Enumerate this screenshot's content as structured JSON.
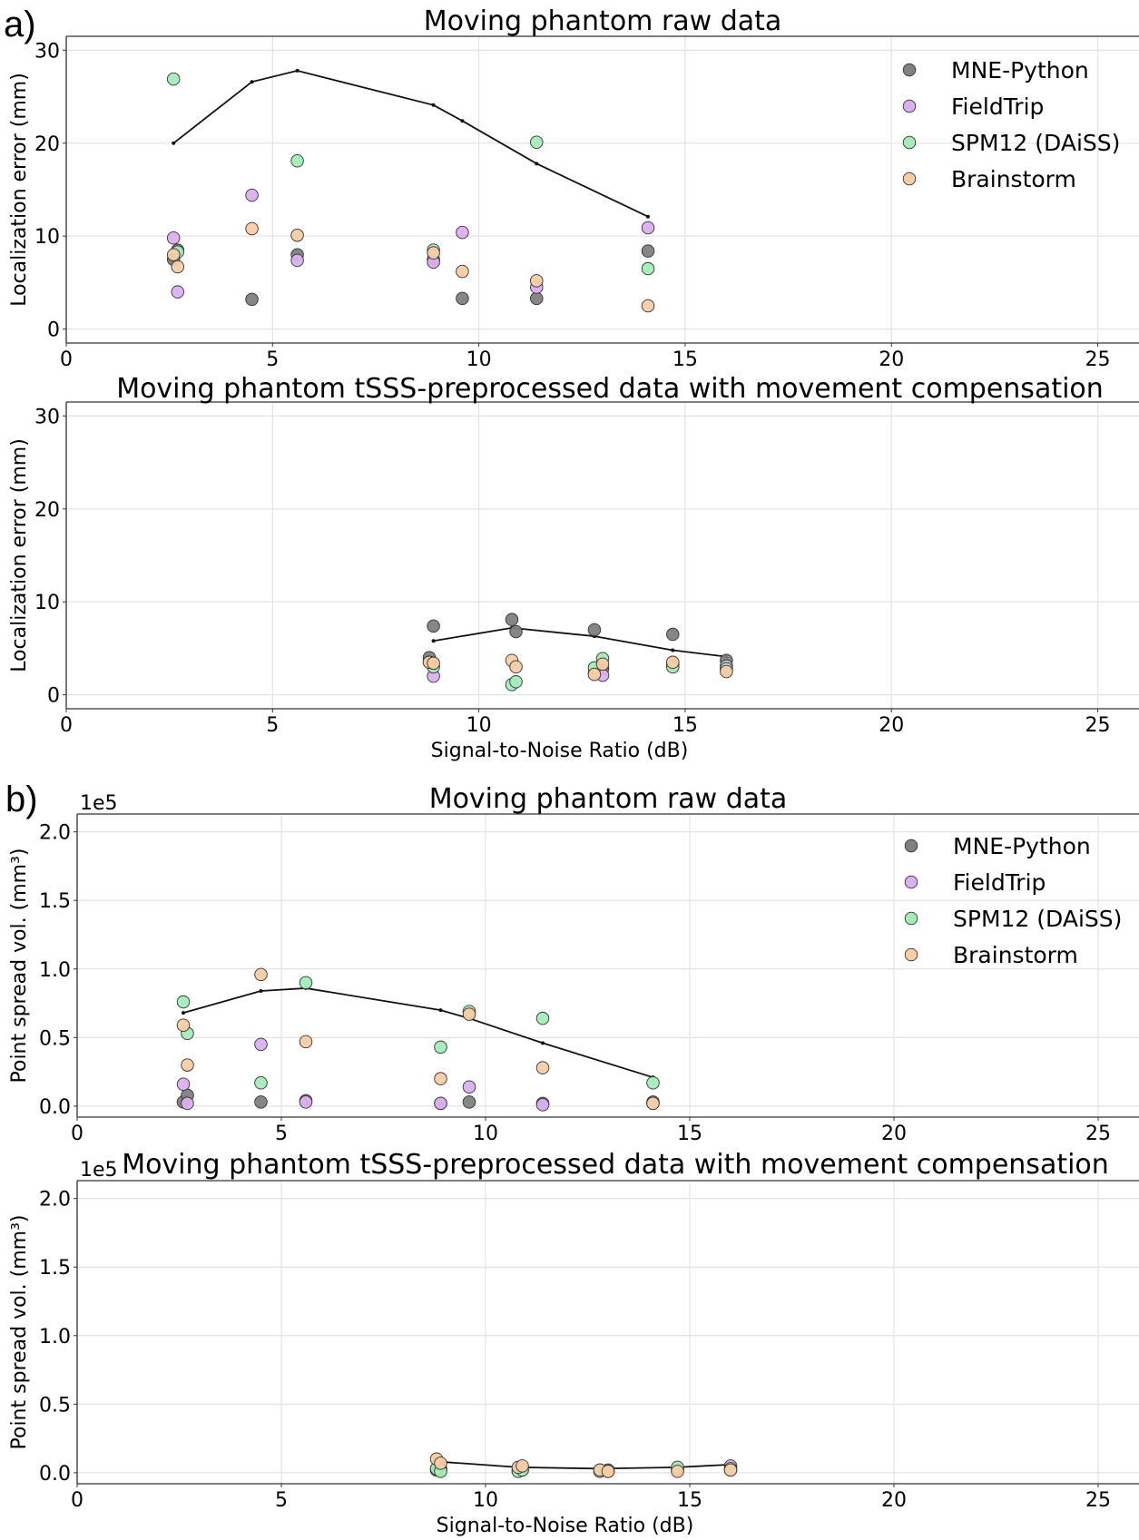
{
  "panel_labels": [
    "a)",
    "b)"
  ],
  "legend": {
    "entries": [
      {
        "name": "MNE-Python",
        "color": "#808080"
      },
      {
        "name": "FieldTrip",
        "color": "#dcaff0"
      },
      {
        "name": "SPM12 (DAiSS)",
        "color": "#a3ecb8"
      },
      {
        "name": "Brainstorm",
        "color": "#f7cda4"
      }
    ]
  },
  "chart_data": [
    {
      "type": "scatter",
      "title": "Moving phantom raw data",
      "xlabel": "",
      "ylabel": "Localization error (mm)",
      "xlim": [
        0,
        26
      ],
      "ylim": [
        -1.5,
        31.5
      ],
      "xticks": [
        "0",
        "5",
        "10",
        "15",
        "20",
        "25"
      ],
      "yticks": [
        {
          "v": 0,
          "label": "0"
        },
        {
          "v": 10,
          "label": "10"
        },
        {
          "v": 20,
          "label": "20"
        },
        {
          "v": 30,
          "label": "30"
        }
      ],
      "grid": true,
      "legend_position": "top-right",
      "show_legend": true,
      "series": [
        {
          "name": "MNE-Python",
          "color": "#808080",
          "points": [
            [
              2.6,
              7.5
            ],
            [
              2.7,
              8.5
            ],
            [
              4.5,
              3.2
            ],
            [
              5.6,
              8.0
            ],
            [
              8.9,
              7.5
            ],
            [
              9.6,
              3.3
            ],
            [
              11.4,
              3.3
            ],
            [
              14.1,
              8.4
            ]
          ]
        },
        {
          "name": "FieldTrip",
          "color": "#dcaff0",
          "points": [
            [
              2.6,
              9.8
            ],
            [
              2.7,
              4.0
            ],
            [
              4.5,
              14.4
            ],
            [
              5.6,
              7.4
            ],
            [
              8.9,
              7.2
            ],
            [
              9.6,
              10.4
            ],
            [
              11.4,
              4.5
            ],
            [
              14.1,
              10.9
            ]
          ]
        },
        {
          "name": "SPM12 (DAiSS)",
          "color": "#a3ecb8",
          "points": [
            [
              2.6,
              26.9
            ],
            [
              2.7,
              8.3
            ],
            [
              5.6,
              18.1
            ],
            [
              8.9,
              8.5
            ],
            [
              11.4,
              20.1
            ],
            [
              14.1,
              6.5
            ]
          ]
        },
        {
          "name": "Brainstorm",
          "color": "#f7cda4",
          "points": [
            [
              2.6,
              8.0
            ],
            [
              2.7,
              6.7
            ],
            [
              4.5,
              10.8
            ],
            [
              5.6,
              10.1
            ],
            [
              8.9,
              8.2
            ],
            [
              9.6,
              6.2
            ],
            [
              11.4,
              5.2
            ],
            [
              14.1,
              2.5
            ]
          ]
        }
      ],
      "line": [
        [
          2.6,
          20.0
        ],
        [
          4.5,
          26.6
        ],
        [
          5.6,
          27.8
        ],
        [
          8.9,
          24.1
        ],
        [
          9.6,
          22.4
        ],
        [
          11.4,
          17.8
        ],
        [
          14.1,
          12.1
        ]
      ]
    },
    {
      "type": "scatter",
      "title": "Moving phantom tSSS-preprocessed data with movement compensation",
      "xlabel": "Signal-to-Noise Ratio (dB)",
      "ylabel": "Localization error (mm)",
      "xlim": [
        0,
        26
      ],
      "ylim": [
        -1.5,
        31.5
      ],
      "xticks": [
        "0",
        "5",
        "10",
        "15",
        "20",
        "25"
      ],
      "yticks": [
        {
          "v": 0,
          "label": "0"
        },
        {
          "v": 10,
          "label": "10"
        },
        {
          "v": 20,
          "label": "20"
        },
        {
          "v": 30,
          "label": "30"
        }
      ],
      "grid": true,
      "show_legend": false,
      "series": [
        {
          "name": "MNE-Python",
          "color": "#808080",
          "points": [
            [
              8.8,
              4.0
            ],
            [
              8.9,
              7.4
            ],
            [
              10.8,
              8.1
            ],
            [
              10.9,
              6.8
            ],
            [
              12.8,
              7.0
            ],
            [
              13.0,
              2.8
            ],
            [
              14.7,
              6.5
            ],
            [
              16.0,
              3.7
            ]
          ]
        },
        {
          "name": "FieldTrip",
          "color": "#dcaff0",
          "points": [
            [
              8.9,
              2.0
            ],
            [
              12.8,
              2.3
            ],
            [
              13.0,
              2.1
            ],
            [
              14.7,
              3.3
            ],
            [
              16.0,
              3.1
            ]
          ]
        },
        {
          "name": "SPM12 (DAiSS)",
          "color": "#a3ecb8",
          "points": [
            [
              8.8,
              3.5
            ],
            [
              8.9,
              3.0
            ],
            [
              10.8,
              1.1
            ],
            [
              10.9,
              1.4
            ],
            [
              12.8,
              2.9
            ],
            [
              13.0,
              3.9
            ],
            [
              14.7,
              3.0
            ],
            [
              16.0,
              2.8
            ]
          ]
        },
        {
          "name": "Brainstorm",
          "color": "#f7cda4",
          "points": [
            [
              8.8,
              3.5
            ],
            [
              8.9,
              3.4
            ],
            [
              10.8,
              3.7
            ],
            [
              10.9,
              3.0
            ],
            [
              12.8,
              2.2
            ],
            [
              13.0,
              3.3
            ],
            [
              14.7,
              3.5
            ],
            [
              16.0,
              2.5
            ]
          ]
        }
      ],
      "line": [
        [
          8.9,
          5.8
        ],
        [
          10.8,
          7.2
        ],
        [
          12.8,
          6.3
        ],
        [
          14.7,
          4.8
        ],
        [
          16.0,
          4.1
        ]
      ]
    },
    {
      "type": "scatter",
      "title": "Moving phantom raw data",
      "xlabel": "",
      "ylabel": "Point spread vol. (mm³)",
      "sci_label": "1e5",
      "xlim": [
        0,
        26
      ],
      "ylim": [
        -0.08,
        2.13
      ],
      "xticks": [
        "0",
        "5",
        "10",
        "15",
        "20",
        "25"
      ],
      "yticks": [
        {
          "v": 0,
          "label": "0.0"
        },
        {
          "v": 0.5,
          "label": "0.5"
        },
        {
          "v": 1.0,
          "label": "1.0"
        },
        {
          "v": 1.5,
          "label": "1.5"
        },
        {
          "v": 2.0,
          "label": "2.0"
        }
      ],
      "grid": true,
      "legend_position": "top-right",
      "show_legend": true,
      "series": [
        {
          "name": "MNE-Python",
          "color": "#808080",
          "points": [
            [
              2.6,
              0.03
            ],
            [
              2.7,
              0.08
            ],
            [
              4.5,
              0.03
            ],
            [
              5.6,
              0.04
            ],
            [
              8.9,
              0.02
            ],
            [
              9.6,
              0.03
            ],
            [
              11.4,
              0.02
            ],
            [
              14.1,
              0.03
            ]
          ]
        },
        {
          "name": "FieldTrip",
          "color": "#dcaff0",
          "points": [
            [
              2.6,
              0.16
            ],
            [
              2.7,
              0.02
            ],
            [
              4.5,
              0.45
            ],
            [
              5.6,
              0.03
            ],
            [
              8.9,
              0.02
            ],
            [
              9.6,
              0.14
            ],
            [
              11.4,
              0.01
            ],
            [
              14.1,
              0.02
            ]
          ]
        },
        {
          "name": "SPM12 (DAiSS)",
          "color": "#a3ecb8",
          "points": [
            [
              2.6,
              0.76
            ],
            [
              2.7,
              0.53
            ],
            [
              4.5,
              0.17
            ],
            [
              5.6,
              0.9
            ],
            [
              8.9,
              0.43
            ],
            [
              9.6,
              0.69
            ],
            [
              11.4,
              0.64
            ],
            [
              14.1,
              0.17
            ]
          ]
        },
        {
          "name": "Brainstorm",
          "color": "#f7cda4",
          "points": [
            [
              2.6,
              0.59
            ],
            [
              2.7,
              0.3
            ],
            [
              4.5,
              0.96
            ],
            [
              5.6,
              0.47
            ],
            [
              8.9,
              0.2
            ],
            [
              9.6,
              0.67
            ],
            [
              11.4,
              0.28
            ],
            [
              14.1,
              0.02
            ]
          ]
        }
      ],
      "line": [
        [
          2.6,
          0.68
        ],
        [
          4.5,
          0.84
        ],
        [
          5.6,
          0.86
        ],
        [
          8.9,
          0.7
        ],
        [
          9.6,
          0.64
        ],
        [
          11.4,
          0.46
        ],
        [
          14.1,
          0.21
        ]
      ]
    },
    {
      "type": "scatter",
      "title": "Moving phantom tSSS-preprocessed data with movement compensation",
      "xlabel": "Signal-to-Noise Ratio (dB)",
      "ylabel": "Point spread vol. (mm³)",
      "sci_label": "1e5",
      "xlim": [
        0,
        26
      ],
      "ylim": [
        -0.08,
        2.13
      ],
      "xticks": [
        "0",
        "5",
        "10",
        "15",
        "20",
        "25"
      ],
      "yticks": [
        {
          "v": 0,
          "label": "0.0"
        },
        {
          "v": 0.5,
          "label": "0.5"
        },
        {
          "v": 1.0,
          "label": "1.0"
        },
        {
          "v": 1.5,
          "label": "1.5"
        },
        {
          "v": 2.0,
          "label": "2.0"
        }
      ],
      "grid": true,
      "show_legend": false,
      "series": [
        {
          "name": "MNE-Python",
          "color": "#808080",
          "points": [
            [
              8.8,
              0.02
            ],
            [
              8.9,
              0.03
            ],
            [
              10.8,
              0.02
            ],
            [
              10.9,
              0.02
            ],
            [
              12.8,
              0.02
            ],
            [
              13.0,
              0.02
            ],
            [
              14.7,
              0.02
            ],
            [
              16.0,
              0.02
            ]
          ]
        },
        {
          "name": "FieldTrip",
          "color": "#dcaff0",
          "points": [
            [
              8.9,
              0.02
            ],
            [
              10.8,
              0.01
            ],
            [
              13.0,
              0.01
            ],
            [
              14.7,
              0.03
            ],
            [
              16.0,
              0.05
            ]
          ]
        },
        {
          "name": "SPM12 (DAiSS)",
          "color": "#a3ecb8",
          "points": [
            [
              8.8,
              0.03
            ],
            [
              8.9,
              0.01
            ],
            [
              10.8,
              0.01
            ],
            [
              10.9,
              0.02
            ],
            [
              12.8,
              0.01
            ],
            [
              13.0,
              0.01
            ],
            [
              14.7,
              0.04
            ],
            [
              16.0,
              0.03
            ]
          ]
        },
        {
          "name": "Brainstorm",
          "color": "#f7cda4",
          "points": [
            [
              8.8,
              0.1
            ],
            [
              8.9,
              0.07
            ],
            [
              10.8,
              0.04
            ],
            [
              10.9,
              0.05
            ],
            [
              12.8,
              0.02
            ],
            [
              13.0,
              0.01
            ],
            [
              14.7,
              0.01
            ],
            [
              16.0,
              0.02
            ]
          ]
        }
      ],
      "line": [
        [
          8.9,
          0.08
        ],
        [
          10.8,
          0.04
        ],
        [
          12.8,
          0.03
        ],
        [
          14.7,
          0.04
        ],
        [
          16.0,
          0.06
        ]
      ]
    }
  ]
}
